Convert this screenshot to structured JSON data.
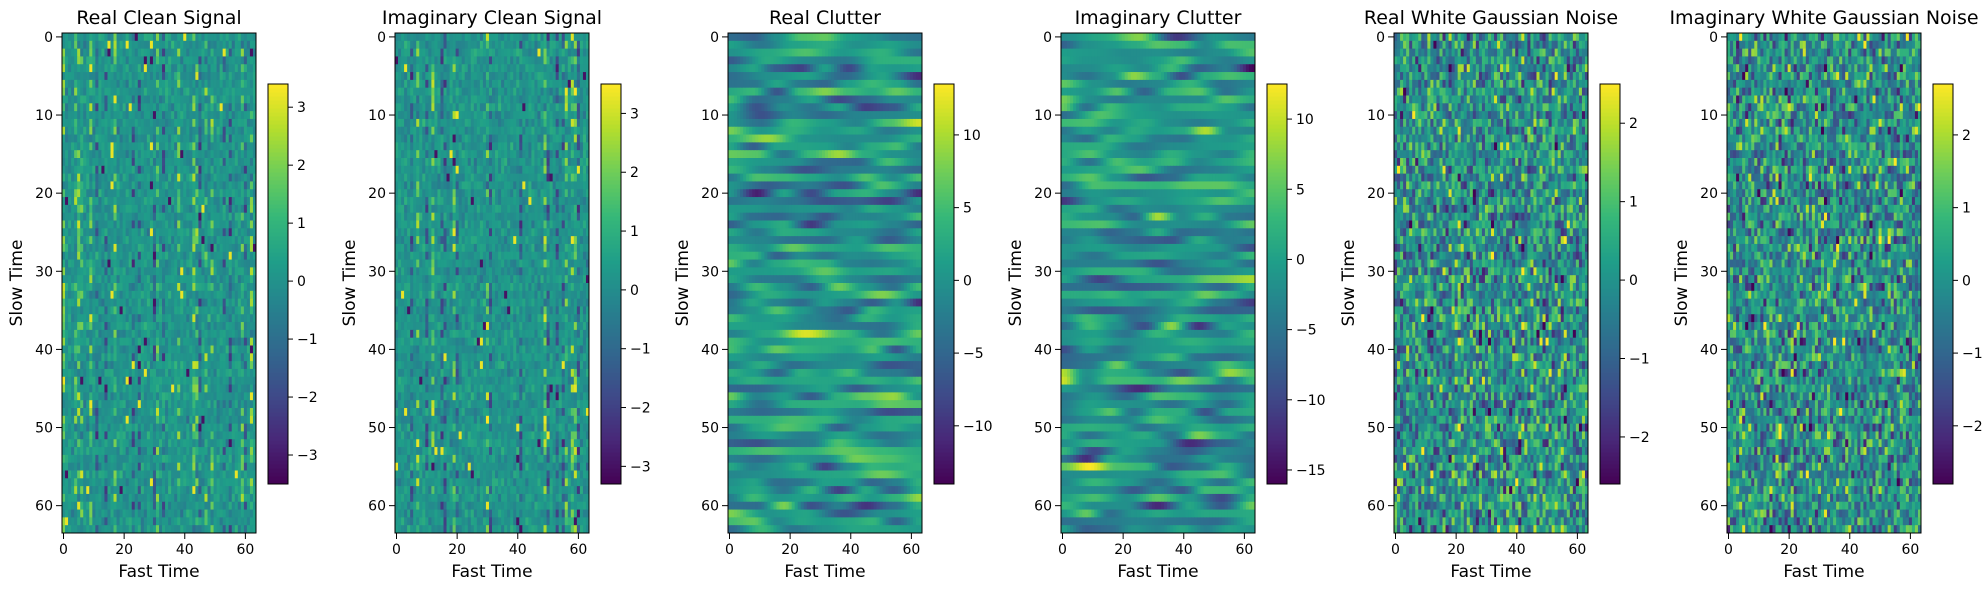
{
  "chart_data": [
    {
      "type": "heatmap",
      "title": "Real Clean Signal",
      "xlabel": "Fast Time",
      "ylabel": "Slow Time",
      "x_ticks": [
        0,
        20,
        40,
        60
      ],
      "y_ticks": [
        0,
        10,
        20,
        30,
        40,
        50,
        60
      ],
      "grid_size": [
        64,
        64
      ],
      "value_range": [
        -3.5,
        3.4
      ],
      "colorbar_ticks": [
        -3,
        -2,
        -1,
        0,
        1,
        2,
        3
      ],
      "colormap": "viridis",
      "pattern": "signal"
    },
    {
      "type": "heatmap",
      "title": "Imaginary Clean Signal",
      "xlabel": "Fast Time",
      "ylabel": "Slow Time",
      "x_ticks": [
        0,
        20,
        40,
        60
      ],
      "y_ticks": [
        0,
        10,
        20,
        30,
        40,
        50,
        60
      ],
      "grid_size": [
        64,
        64
      ],
      "value_range": [
        -3.3,
        3.5
      ],
      "colorbar_ticks": [
        -3,
        -2,
        -1,
        0,
        1,
        2,
        3
      ],
      "colormap": "viridis",
      "pattern": "signal"
    },
    {
      "type": "heatmap",
      "title": "Real Clutter",
      "xlabel": "Fast Time",
      "ylabel": "Slow Time",
      "x_ticks": [
        0,
        20,
        40,
        60
      ],
      "y_ticks": [
        0,
        10,
        20,
        30,
        40,
        50,
        60
      ],
      "grid_size": [
        64,
        64
      ],
      "value_range": [
        -14,
        13.5
      ],
      "colorbar_ticks": [
        -10,
        -5,
        0,
        5,
        10
      ],
      "colormap": "viridis",
      "pattern": "clutter"
    },
    {
      "type": "heatmap",
      "title": "Imaginary Clutter",
      "xlabel": "Fast Time",
      "ylabel": "Slow Time",
      "x_ticks": [
        0,
        20,
        40,
        60
      ],
      "y_ticks": [
        0,
        10,
        20,
        30,
        40,
        50,
        60
      ],
      "grid_size": [
        64,
        64
      ],
      "value_range": [
        -16,
        12.5
      ],
      "colorbar_ticks": [
        -15,
        -10,
        -5,
        0,
        5,
        10
      ],
      "colormap": "viridis",
      "pattern": "clutter"
    },
    {
      "type": "heatmap",
      "title": "Real White Gaussian Noise",
      "xlabel": "Fast Time",
      "ylabel": "Slow Time",
      "x_ticks": [
        0,
        20,
        40,
        60
      ],
      "y_ticks": [
        0,
        10,
        20,
        30,
        40,
        50,
        60
      ],
      "grid_size": [
        64,
        64
      ],
      "value_range": [
        -2.6,
        2.5
      ],
      "colorbar_ticks": [
        -2,
        -1,
        0,
        1,
        2
      ],
      "colormap": "viridis",
      "pattern": "noise"
    },
    {
      "type": "heatmap",
      "title": "Imaginary White Gaussian Noise",
      "xlabel": "Fast Time",
      "ylabel": "Slow Time",
      "x_ticks": [
        0,
        20,
        40,
        60
      ],
      "y_ticks": [
        0,
        10,
        20,
        30,
        40,
        50,
        60
      ],
      "grid_size": [
        64,
        64
      ],
      "value_range": [
        -2.8,
        2.7
      ],
      "colorbar_ticks": [
        -2,
        -1,
        0,
        1,
        2
      ],
      "colormap": "viridis",
      "pattern": "noise"
    }
  ]
}
